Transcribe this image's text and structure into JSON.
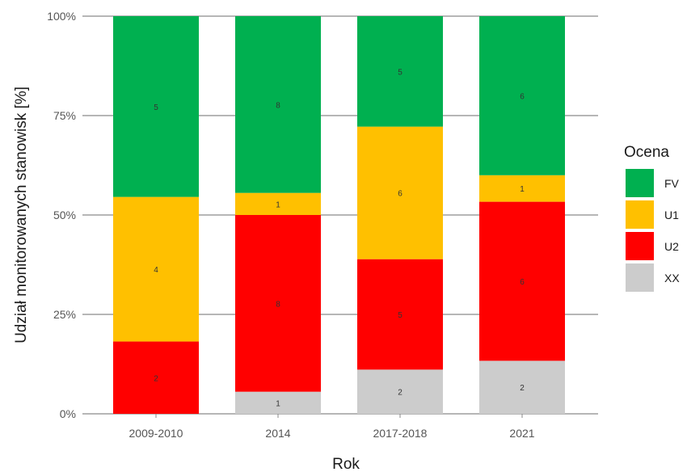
{
  "chart_data": {
    "type": "bar",
    "stacked": true,
    "percent_stacked": true,
    "xlabel": "Rok",
    "ylabel": "Udział monitorowanych stanowisk [%]",
    "ylim": [
      0,
      100
    ],
    "yticks": [
      "0%",
      "25%",
      "50%",
      "75%",
      "100%"
    ],
    "grid": true,
    "legend_position": "right",
    "legend_title": "Ocena",
    "categories": [
      "2009-2010",
      "2014",
      "2017-2018",
      "2021"
    ],
    "series": [
      {
        "name": "XX",
        "color": "#cccccc",
        "values": [
          0,
          1,
          2,
          2
        ]
      },
      {
        "name": "U2",
        "color": "#ff0000",
        "values": [
          2,
          8,
          5,
          6
        ]
      },
      {
        "name": "U1",
        "color": "#ffc000",
        "values": [
          4,
          1,
          6,
          1
        ]
      },
      {
        "name": "FV",
        "color": "#00b050",
        "values": [
          5,
          8,
          5,
          6
        ]
      }
    ],
    "legend_order": [
      "FV",
      "U1",
      "U2",
      "XX"
    ]
  }
}
